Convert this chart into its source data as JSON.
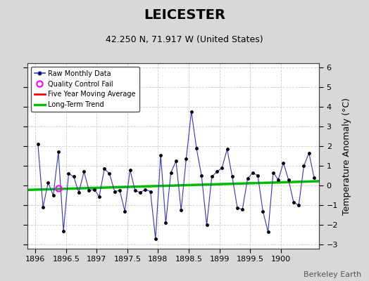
{
  "title": "LEICESTER",
  "subtitle": "42.250 N, 71.917 W (United States)",
  "ylabel": "Temperature Anomaly (°C)",
  "credit": "Berkeley Earth",
  "xlim": [
    1895.875,
    1900.625
  ],
  "ylim": [
    -3.2,
    6.2
  ],
  "yticks": [
    -3,
    -2,
    -1,
    0,
    1,
    2,
    3,
    4,
    5,
    6
  ],
  "xticks": [
    1896,
    1896.5,
    1897,
    1897.5,
    1898,
    1898.5,
    1899,
    1899.5,
    1900
  ],
  "bg_color": "#d8d8d8",
  "plot_bg_color": "#ffffff",
  "raw_x": [
    1896.042,
    1896.125,
    1896.208,
    1896.292,
    1896.375,
    1896.458,
    1896.542,
    1896.625,
    1896.708,
    1896.792,
    1896.875,
    1896.958,
    1897.042,
    1897.125,
    1897.208,
    1897.292,
    1897.375,
    1897.458,
    1897.542,
    1897.625,
    1897.708,
    1897.792,
    1897.875,
    1897.958,
    1898.042,
    1898.125,
    1898.208,
    1898.292,
    1898.375,
    1898.458,
    1898.542,
    1898.625,
    1898.708,
    1898.792,
    1898.875,
    1898.958,
    1899.042,
    1899.125,
    1899.208,
    1899.292,
    1899.375,
    1899.458,
    1899.542,
    1899.625,
    1899.708,
    1899.792,
    1899.875,
    1899.958,
    1900.042,
    1900.125,
    1900.208,
    1900.292,
    1900.375,
    1900.458,
    1900.542
  ],
  "raw_y": [
    2.1,
    -1.1,
    0.15,
    -0.5,
    1.7,
    -2.3,
    0.6,
    0.45,
    -0.35,
    0.7,
    -0.25,
    -0.2,
    -0.55,
    0.85,
    0.6,
    -0.3,
    -0.25,
    -1.3,
    0.8,
    -0.25,
    -0.35,
    -0.2,
    -0.3,
    -2.7,
    1.55,
    -1.9,
    0.65,
    1.25,
    -1.25,
    1.35,
    3.75,
    1.9,
    0.5,
    -2.0,
    0.45,
    0.7,
    0.9,
    1.85,
    0.45,
    -1.15,
    -1.2,
    0.35,
    0.65,
    0.5,
    -1.3,
    -2.35,
    0.65,
    0.3,
    1.15,
    0.3,
    -0.85,
    -1.0,
    1.0,
    1.65,
    0.4
  ],
  "qc_x": [
    1896.375
  ],
  "qc_y": [
    -0.15
  ],
  "trend_x": [
    1895.875,
    1900.625
  ],
  "trend_y": [
    -0.22,
    0.22
  ],
  "raw_line_color": "#3333cc",
  "raw_dot_color": "#000000",
  "qc_color": "#ff00ff",
  "trend_color": "#00bb00",
  "moving_avg_color": "#ff0000",
  "grid_color": "#cccccc",
  "title_fontsize": 14,
  "subtitle_fontsize": 9,
  "label_fontsize": 9,
  "tick_fontsize": 8,
  "credit_fontsize": 8
}
